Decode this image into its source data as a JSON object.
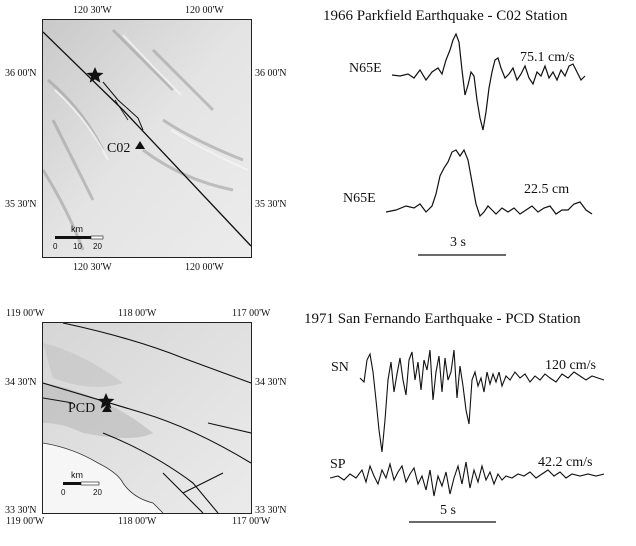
{
  "map1": {
    "top_lon": [
      "120 30'W",
      "120 00'W"
    ],
    "bottom_lon": [
      "120 30'W",
      "120 00'W"
    ],
    "left_lat": [
      "36 00'N",
      "35 30'N"
    ],
    "right_lat": [
      "36 00'N",
      "35 30'N"
    ],
    "scale_unit": "km",
    "scale_ticks": [
      "0",
      "10",
      "20"
    ],
    "station": "C02"
  },
  "map2": {
    "top_lon": [
      "119 00'W",
      "118 00'W",
      "117 00'W"
    ],
    "bottom_lon": [
      "119 00'W",
      "118 00'W",
      "117 00'W"
    ],
    "left_lat": [
      "34 30'N",
      "33 30'N"
    ],
    "right_lat": [
      "34 30'N",
      "33 30'N"
    ],
    "scale_unit": "km",
    "scale_ticks": [
      "0",
      "20"
    ],
    "station": "PCD"
  },
  "panel1": {
    "title": "1966 Parkfield Earthquake - C02 Station",
    "trace1_label": "N65E",
    "trace1_value": "75.1 cm/s",
    "trace2_label": "N65E",
    "trace2_value": "22.5 cm",
    "time_bar": "3 s"
  },
  "panel2": {
    "title": "1971 San Fernando Earthquake - PCD Station",
    "trace1_label": "SN",
    "trace1_value": "120 cm/s",
    "trace2_label": "SP",
    "trace2_value": "42.2 cm/s",
    "time_bar": "5 s"
  }
}
